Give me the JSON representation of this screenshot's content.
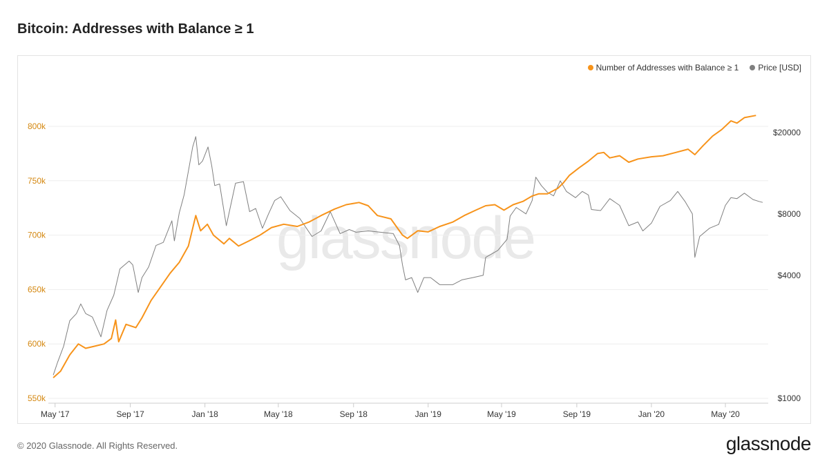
{
  "header": {
    "title": "Bitcoin: Addresses with Balance ≥ 1"
  },
  "footer": {
    "copyright": "© 2020 Glassnode. All Rights Reserved.",
    "logo": "glassnode"
  },
  "watermark": "glassnode",
  "legend": [
    {
      "label": "Number of Addresses with Balance ≥ 1",
      "color": "#f7931a"
    },
    {
      "label": "Price [USD]",
      "color": "#7f7f7f"
    }
  ],
  "chart_data": {
    "type": "line",
    "grid": true,
    "legend_position": "top-right",
    "x_axis": {
      "type": "date",
      "range": [
        "2017-04-20",
        "2020-07-10"
      ],
      "ticks": [
        {
          "date": "2017-05-01",
          "label": "May '17"
        },
        {
          "date": "2017-09-01",
          "label": "Sep '17"
        },
        {
          "date": "2018-01-01",
          "label": "Jan '18"
        },
        {
          "date": "2018-05-01",
          "label": "May '18"
        },
        {
          "date": "2018-09-01",
          "label": "Sep '18"
        },
        {
          "date": "2019-01-01",
          "label": "Jan '19"
        },
        {
          "date": "2019-05-01",
          "label": "May '19"
        },
        {
          "date": "2019-09-01",
          "label": "Sep '19"
        },
        {
          "date": "2020-01-01",
          "label": "Jan '20"
        },
        {
          "date": "2020-05-01",
          "label": "May '20"
        }
      ]
    },
    "y_left": {
      "scale": "linear",
      "range": [
        550000,
        800000
      ],
      "ticks": [
        {
          "value": 550000,
          "label": "550k"
        },
        {
          "value": 600000,
          "label": "600k"
        },
        {
          "value": 650000,
          "label": "650k"
        },
        {
          "value": 700000,
          "label": "700k"
        },
        {
          "value": 750000,
          "label": "750k"
        },
        {
          "value": 800000,
          "label": "800k"
        }
      ],
      "color": "#d4870f"
    },
    "y_right": {
      "scale": "log",
      "range": [
        1000,
        20000
      ],
      "ticks": [
        {
          "value": 1000,
          "label": "$1000"
        },
        {
          "value": 4000,
          "label": "$4000"
        },
        {
          "value": 8000,
          "label": "$8000"
        },
        {
          "value": 20000,
          "label": "$20000"
        }
      ],
      "color": "#333333"
    },
    "series": [
      {
        "name": "Number of Addresses with Balance ≥ 1",
        "axis": "left",
        "color": "#f7931a",
        "points": [
          [
            "2017-04-28",
            569000
          ],
          [
            "2017-05-10",
            575000
          ],
          [
            "2017-05-25",
            590000
          ],
          [
            "2017-06-08",
            600000
          ],
          [
            "2017-06-20",
            596000
          ],
          [
            "2017-07-05",
            598000
          ],
          [
            "2017-07-20",
            600000
          ],
          [
            "2017-08-01",
            605000
          ],
          [
            "2017-08-08",
            622000
          ],
          [
            "2017-08-13",
            602000
          ],
          [
            "2017-08-25",
            618000
          ],
          [
            "2017-09-10",
            615000
          ],
          [
            "2017-09-20",
            624000
          ],
          [
            "2017-10-05",
            640000
          ],
          [
            "2017-10-20",
            652000
          ],
          [
            "2017-11-05",
            665000
          ],
          [
            "2017-11-20",
            675000
          ],
          [
            "2017-12-05",
            690000
          ],
          [
            "2017-12-17",
            718000
          ],
          [
            "2017-12-25",
            704000
          ],
          [
            "2018-01-05",
            710000
          ],
          [
            "2018-01-15",
            700000
          ],
          [
            "2018-02-01",
            692000
          ],
          [
            "2018-02-10",
            697000
          ],
          [
            "2018-02-25",
            690000
          ],
          [
            "2018-03-15",
            695000
          ],
          [
            "2018-04-01",
            700000
          ],
          [
            "2018-04-20",
            707000
          ],
          [
            "2018-05-10",
            710000
          ],
          [
            "2018-06-01",
            708000
          ],
          [
            "2018-06-20",
            712000
          ],
          [
            "2018-07-10",
            718000
          ],
          [
            "2018-08-01",
            724000
          ],
          [
            "2018-08-20",
            728000
          ],
          [
            "2018-09-10",
            730000
          ],
          [
            "2018-09-25",
            727000
          ],
          [
            "2018-10-10",
            718000
          ],
          [
            "2018-11-01",
            715000
          ],
          [
            "2018-11-20",
            700000
          ],
          [
            "2018-11-28",
            697000
          ],
          [
            "2018-12-15",
            704000
          ],
          [
            "2019-01-01",
            703000
          ],
          [
            "2019-01-20",
            708000
          ],
          [
            "2019-02-10",
            712000
          ],
          [
            "2019-03-01",
            718000
          ],
          [
            "2019-03-20",
            723000
          ],
          [
            "2019-04-05",
            727000
          ],
          [
            "2019-04-20",
            728000
          ],
          [
            "2019-05-05",
            723000
          ],
          [
            "2019-05-20",
            728000
          ],
          [
            "2019-06-05",
            731000
          ],
          [
            "2019-06-20",
            736000
          ],
          [
            "2019-07-01",
            738000
          ],
          [
            "2019-07-15",
            738000
          ],
          [
            "2019-08-01",
            743000
          ],
          [
            "2019-08-10",
            748000
          ],
          [
            "2019-08-20",
            755000
          ],
          [
            "2019-09-05",
            762000
          ],
          [
            "2019-09-20",
            768000
          ],
          [
            "2019-10-05",
            775000
          ],
          [
            "2019-10-15",
            776000
          ],
          [
            "2019-10-25",
            771000
          ],
          [
            "2019-11-10",
            773000
          ],
          [
            "2019-11-25",
            767000
          ],
          [
            "2019-12-10",
            770000
          ],
          [
            "2020-01-01",
            772000
          ],
          [
            "2020-01-20",
            773000
          ],
          [
            "2020-02-10",
            776000
          ],
          [
            "2020-03-01",
            779000
          ],
          [
            "2020-03-12",
            774000
          ],
          [
            "2020-03-25",
            782000
          ],
          [
            "2020-04-10",
            791000
          ],
          [
            "2020-04-25",
            797000
          ],
          [
            "2020-05-10",
            805000
          ],
          [
            "2020-05-20",
            803000
          ],
          [
            "2020-06-01",
            808000
          ],
          [
            "2020-06-20",
            810000
          ]
        ]
      },
      {
        "name": "Price [USD]",
        "axis": "right",
        "color": "#7f7f7f",
        "points": [
          [
            "2017-04-28",
            1300
          ],
          [
            "2017-05-05",
            1500
          ],
          [
            "2017-05-15",
            1800
          ],
          [
            "2017-05-25",
            2400
          ],
          [
            "2017-06-05",
            2600
          ],
          [
            "2017-06-12",
            2900
          ],
          [
            "2017-06-20",
            2600
          ],
          [
            "2017-07-01",
            2500
          ],
          [
            "2017-07-15",
            2000
          ],
          [
            "2017-07-25",
            2700
          ],
          [
            "2017-08-05",
            3200
          ],
          [
            "2017-08-15",
            4300
          ],
          [
            "2017-08-30",
            4700
          ],
          [
            "2017-09-05",
            4500
          ],
          [
            "2017-09-14",
            3300
          ],
          [
            "2017-09-20",
            3900
          ],
          [
            "2017-10-01",
            4400
          ],
          [
            "2017-10-13",
            5600
          ],
          [
            "2017-10-25",
            5800
          ],
          [
            "2017-11-08",
            7400
          ],
          [
            "2017-11-12",
            5900
          ],
          [
            "2017-11-20",
            8100
          ],
          [
            "2017-11-28",
            9900
          ],
          [
            "2017-12-07",
            14000
          ],
          [
            "2017-12-12",
            17000
          ],
          [
            "2017-12-17",
            19100
          ],
          [
            "2017-12-22",
            13900
          ],
          [
            "2017-12-28",
            14500
          ],
          [
            "2018-01-06",
            17000
          ],
          [
            "2018-01-12",
            13800
          ],
          [
            "2018-01-17",
            11000
          ],
          [
            "2018-01-25",
            11200
          ],
          [
            "2018-02-05",
            7000
          ],
          [
            "2018-02-20",
            11300
          ],
          [
            "2018-03-05",
            11500
          ],
          [
            "2018-03-15",
            8200
          ],
          [
            "2018-03-25",
            8500
          ],
          [
            "2018-04-05",
            6800
          ],
          [
            "2018-04-15",
            8000
          ],
          [
            "2018-04-25",
            9300
          ],
          [
            "2018-05-05",
            9700
          ],
          [
            "2018-05-20",
            8300
          ],
          [
            "2018-06-05",
            7600
          ],
          [
            "2018-06-25",
            6200
          ],
          [
            "2018-07-10",
            6600
          ],
          [
            "2018-07-25",
            8200
          ],
          [
            "2018-08-10",
            6400
          ],
          [
            "2018-08-25",
            6700
          ],
          [
            "2018-09-05",
            6500
          ],
          [
            "2018-09-25",
            6600
          ],
          [
            "2018-10-15",
            6500
          ],
          [
            "2018-11-05",
            6400
          ],
          [
            "2018-11-15",
            5600
          ],
          [
            "2018-11-20",
            4500
          ],
          [
            "2018-11-25",
            3800
          ],
          [
            "2018-12-05",
            3900
          ],
          [
            "2018-12-15",
            3300
          ],
          [
            "2018-12-25",
            3900
          ],
          [
            "2019-01-05",
            3900
          ],
          [
            "2019-01-20",
            3600
          ],
          [
            "2019-02-10",
            3600
          ],
          [
            "2019-02-25",
            3800
          ],
          [
            "2019-03-15",
            3900
          ],
          [
            "2019-04-01",
            4000
          ],
          [
            "2019-04-05",
            4900
          ],
          [
            "2019-04-25",
            5300
          ],
          [
            "2019-05-10",
            6000
          ],
          [
            "2019-05-15",
            7800
          ],
          [
            "2019-05-25",
            8600
          ],
          [
            "2019-06-10",
            8000
          ],
          [
            "2019-06-20",
            9300
          ],
          [
            "2019-06-26",
            12100
          ],
          [
            "2019-07-05",
            11000
          ],
          [
            "2019-07-15",
            10200
          ],
          [
            "2019-07-25",
            9800
          ],
          [
            "2019-08-05",
            11600
          ],
          [
            "2019-08-15",
            10300
          ],
          [
            "2019-08-30",
            9600
          ],
          [
            "2019-09-10",
            10300
          ],
          [
            "2019-09-20",
            9900
          ],
          [
            "2019-09-25",
            8400
          ],
          [
            "2019-10-10",
            8300
          ],
          [
            "2019-10-25",
            9500
          ],
          [
            "2019-11-10",
            8800
          ],
          [
            "2019-11-25",
            7000
          ],
          [
            "2019-12-10",
            7300
          ],
          [
            "2019-12-18",
            6600
          ],
          [
            "2020-01-01",
            7200
          ],
          [
            "2020-01-15",
            8700
          ],
          [
            "2020-02-01",
            9300
          ],
          [
            "2020-02-13",
            10300
          ],
          [
            "2020-02-25",
            9200
          ],
          [
            "2020-03-08",
            8000
          ],
          [
            "2020-03-12",
            4900
          ],
          [
            "2020-03-20",
            6200
          ],
          [
            "2020-04-05",
            6800
          ],
          [
            "2020-04-20",
            7100
          ],
          [
            "2020-05-01",
            8800
          ],
          [
            "2020-05-10",
            9600
          ],
          [
            "2020-05-20",
            9500
          ],
          [
            "2020-06-01",
            10100
          ],
          [
            "2020-06-15",
            9400
          ],
          [
            "2020-06-25",
            9200
          ],
          [
            "2020-07-01",
            9100
          ]
        ]
      }
    ]
  }
}
